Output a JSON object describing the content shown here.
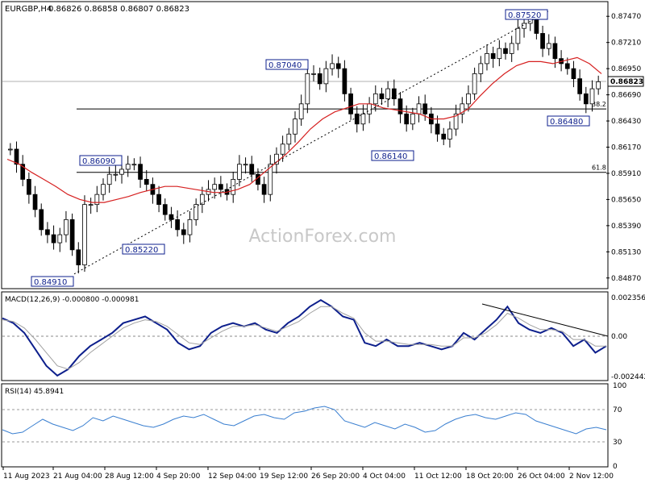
{
  "header": {
    "symbol": "EURGBP,H4",
    "ohlc": "0.86826 0.86858 0.86807 0.86823"
  },
  "watermark": "ActionForex.com",
  "colors": {
    "candle": "#000000",
    "ma": "#d62020",
    "macd": "#0d1f8c",
    "signal": "#a0a0a0",
    "rsi": "#3a7fd0",
    "fib": "#000000",
    "label_border": "#0d1f8c",
    "grid": "#ffffff"
  },
  "chart_data": [
    {
      "type": "candlestick",
      "title": "EURGBP,H4",
      "ylim": [
        0.8478,
        0.876
      ],
      "y_ticks": [
        "0.87470",
        "0.87210",
        "0.86950",
        "0.86690",
        "0.86430",
        "0.86170",
        "0.85910",
        "0.85650",
        "0.85390",
        "0.85130",
        "0.84870"
      ],
      "current_price": "0.86823",
      "x_ticks": [
        "11 Aug 2023",
        "21 Aug 04:00",
        "28 Aug 12:00",
        "4 Sep 20:00",
        "12 Sep 04:00",
        "19 Sep 12:00",
        "26 Sep 20:00",
        "4 Oct 04:00",
        "11 Oct 12:00",
        "18 Oct 20:00",
        "26 Oct 04:00",
        "2 Nov 12:00"
      ],
      "annotations": [
        {
          "text": "0.84910",
          "kind": "low",
          "price": 0.8491
        },
        {
          "text": "0.86090",
          "kind": "high",
          "price": 0.8609
        },
        {
          "text": "0.85220",
          "kind": "low",
          "price": 0.8522
        },
        {
          "text": "0.87040",
          "kind": "high",
          "price": 0.8704
        },
        {
          "text": "0.86140",
          "kind": "low",
          "price": 0.8614
        },
        {
          "text": "0.87520",
          "kind": "high",
          "price": 0.8752
        },
        {
          "text": "0.86480",
          "kind": "low",
          "price": 0.8648
        }
      ],
      "fib_levels": [
        {
          "label": "38.2",
          "price": 0.8655
        },
        {
          "label": "61.8",
          "price": 0.8592
        }
      ],
      "trendline": {
        "from": 0.8491,
        "to": 0.8752,
        "style": "dotted"
      },
      "close_series": [
        0.8615,
        0.86,
        0.8585,
        0.857,
        0.8555,
        0.8535,
        0.853,
        0.8522,
        0.853,
        0.8545,
        0.8515,
        0.85,
        0.856,
        0.856,
        0.857,
        0.858,
        0.859,
        0.859,
        0.8595,
        0.86,
        0.86,
        0.8585,
        0.858,
        0.857,
        0.856,
        0.855,
        0.8545,
        0.8535,
        0.853,
        0.8545,
        0.856,
        0.857,
        0.8575,
        0.858,
        0.8575,
        0.857,
        0.8585,
        0.86,
        0.86,
        0.859,
        0.858,
        0.857,
        0.86,
        0.861,
        0.862,
        0.863,
        0.8645,
        0.866,
        0.869,
        0.869,
        0.868,
        0.8695,
        0.87,
        0.8695,
        0.867,
        0.865,
        0.864,
        0.865,
        0.866,
        0.867,
        0.8665,
        0.8675,
        0.8665,
        0.865,
        0.864,
        0.865,
        0.866,
        0.865,
        0.864,
        0.863,
        0.8625,
        0.8635,
        0.865,
        0.866,
        0.867,
        0.869,
        0.87,
        0.871,
        0.8705,
        0.8715,
        0.871,
        0.872,
        0.8735,
        0.874,
        0.8745,
        0.873,
        0.8715,
        0.872,
        0.8705,
        0.87,
        0.8695,
        0.8685,
        0.867,
        0.866,
        0.8675,
        0.8682
      ],
      "ma_series": [
        0.8605,
        0.86,
        0.8592,
        0.8585,
        0.8578,
        0.857,
        0.8565,
        0.8562,
        0.8562,
        0.8565,
        0.8568,
        0.8572,
        0.8575,
        0.8578,
        0.8578,
        0.8576,
        0.8574,
        0.8572,
        0.8572,
        0.8575,
        0.858,
        0.859,
        0.86,
        0.861,
        0.8622,
        0.8635,
        0.8645,
        0.8652,
        0.8656,
        0.866,
        0.866,
        0.8656,
        0.8654,
        0.8652,
        0.865,
        0.8645,
        0.8645,
        0.8648,
        0.8655,
        0.8668,
        0.868,
        0.869,
        0.8698,
        0.8702,
        0.8702,
        0.87,
        0.8703,
        0.8706,
        0.87,
        0.869
      ]
    },
    {
      "type": "line",
      "title": "MACD(12,26,9) -0.000800 -0.000981",
      "ylim": [
        -0.0026,
        0.0026
      ],
      "y_ticks": [
        "0.002356",
        "0.00",
        "-0.002442"
      ],
      "series": [
        {
          "name": "MACD",
          "values": [
            0.0011,
            0.0008,
            0.0002,
            -0.0008,
            -0.0018,
            -0.0024,
            -0.002,
            -0.0012,
            -0.0006,
            -0.0002,
            0.0002,
            0.0008,
            0.001,
            0.0012,
            0.0008,
            0.0004,
            -0.0004,
            -0.0008,
            -0.0006,
            0.0002,
            0.0006,
            0.0008,
            0.0006,
            0.0008,
            0.0004,
            0.0002,
            0.0008,
            0.0012,
            0.0018,
            0.0022,
            0.0018,
            0.0012,
            0.001,
            -0.0004,
            -0.0006,
            -0.0002,
            -0.0006,
            -0.0006,
            -0.0004,
            -0.0006,
            -0.0008,
            -0.0006,
            0.0002,
            -0.0002,
            0.0004,
            0.001,
            0.0018,
            0.0008,
            0.0004,
            0.0002,
            0.0005,
            0.0002,
            -0.0006,
            -0.0002,
            -0.001,
            -0.0006
          ]
        },
        {
          "name": "Signal",
          "values": [
            0.001,
            0.0009,
            0.0005,
            -0.0002,
            -0.001,
            -0.0018,
            -0.002,
            -0.0016,
            -0.001,
            -0.0005,
            0.0,
            0.0005,
            0.0008,
            0.001,
            0.0009,
            0.0006,
            0.0001,
            -0.0004,
            -0.0005,
            -0.0001,
            0.0003,
            0.0006,
            0.0006,
            0.0007,
            0.0005,
            0.0003,
            0.0006,
            0.0009,
            0.0014,
            0.0018,
            0.0018,
            0.0014,
            0.0011,
            0.0002,
            -0.0003,
            -0.0003,
            -0.0004,
            -0.0005,
            -0.0005,
            -0.0005,
            -0.0006,
            -0.0006,
            -0.0001,
            -0.0001,
            0.0002,
            0.0007,
            0.0014,
            0.0011,
            0.0007,
            0.0004,
            0.0004,
            0.0003,
            -0.0002,
            -0.0002,
            -0.0006,
            -0.0006
          ]
        }
      ],
      "trendline": "descending from Oct 18 peak"
    },
    {
      "type": "line",
      "title": "RSI(14) 45.8941",
      "ylim": [
        0,
        100
      ],
      "y_ticks": [
        "100",
        "70",
        "30",
        "0"
      ],
      "levels": [
        70,
        30
      ],
      "series": [
        {
          "name": "RSI",
          "values": [
            45,
            40,
            42,
            50,
            58,
            52,
            48,
            44,
            50,
            60,
            56,
            62,
            58,
            54,
            50,
            48,
            52,
            58,
            62,
            60,
            64,
            58,
            52,
            50,
            56,
            62,
            64,
            60,
            58,
            66,
            68,
            72,
            74,
            70,
            56,
            52,
            48,
            54,
            50,
            46,
            52,
            48,
            42,
            44,
            52,
            58,
            62,
            64,
            60,
            58,
            62,
            66,
            64,
            56,
            52,
            48,
            44,
            40,
            46,
            48,
            45
          ]
        }
      ]
    }
  ]
}
